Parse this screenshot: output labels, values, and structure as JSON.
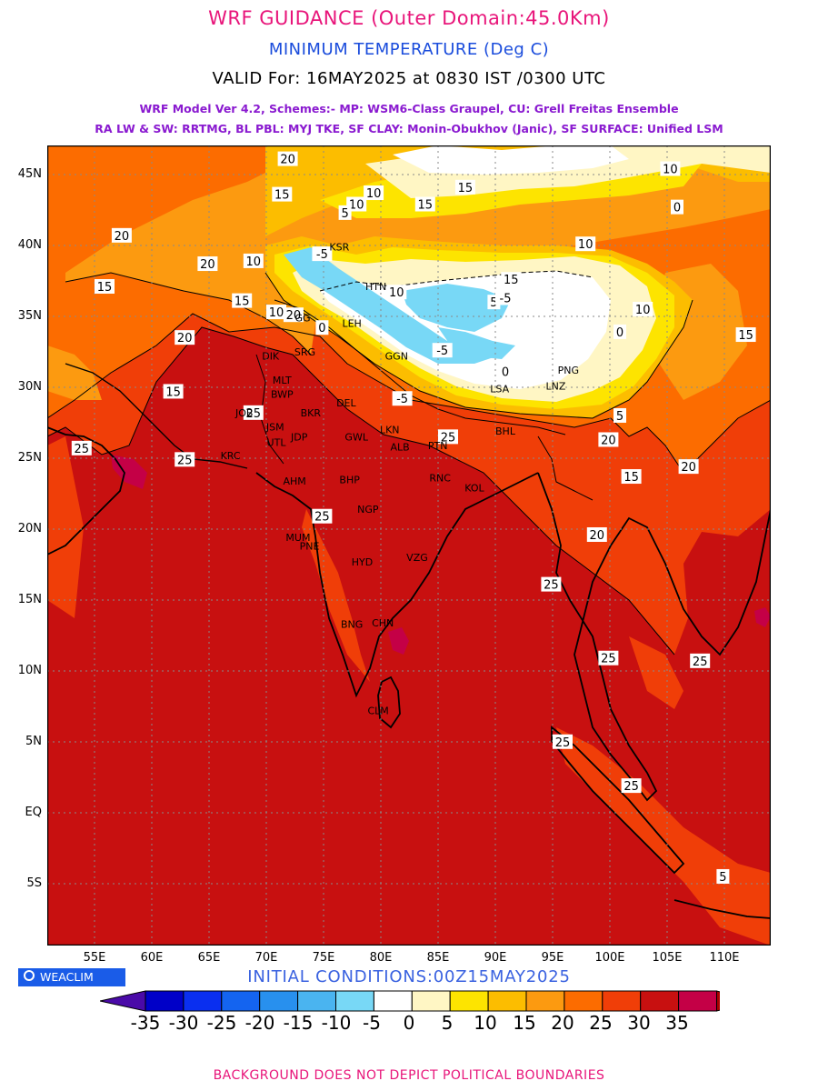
{
  "header": {
    "title": "WRF GUIDANCE (Outer Domain:45.0Km)",
    "subtitle": "MINIMUM TEMPERATURE (Deg C)",
    "valid": "VALID For: 16MAY2025 at 0830 IST /0300 UTC",
    "model_line1": "WRF Model Ver 4.2, Schemes:- MP: WSM6-Class Graupel, CU: Grell Freitas Ensemble",
    "model_line2": "RA LW & SW: RRTMG, BL PBL: MYJ TKE, SF CLAY: Monin-Obukhov (Janic), SF SURFACE: Unified LSM"
  },
  "map": {
    "lat_labels": [
      "45N",
      "40N",
      "35N",
      "30N",
      "25N",
      "20N",
      "15N",
      "10N",
      "5N",
      "EQ",
      "5S"
    ],
    "lon_labels": [
      "55E",
      "60E",
      "65E",
      "70E",
      "75E",
      "80E",
      "85E",
      "90E",
      "95E",
      "100E",
      "105E",
      "110E"
    ],
    "contour_labels": [
      {
        "t": "20"
      },
      {
        "t": "15"
      },
      {
        "t": "10"
      },
      {
        "t": "15"
      },
      {
        "t": "15"
      },
      {
        "t": "10"
      },
      {
        "t": "5"
      },
      {
        "t": "20"
      },
      {
        "t": "10"
      },
      {
        "t": "20"
      },
      {
        "t": "15"
      },
      {
        "t": "15"
      },
      {
        "t": "10"
      },
      {
        "t": "-5"
      },
      {
        "t": "15"
      },
      {
        "t": "10"
      },
      {
        "t": "5"
      },
      {
        "t": "10"
      },
      {
        "t": "20"
      },
      {
        "t": "20"
      },
      {
        "t": "-5"
      },
      {
        "t": "0"
      },
      {
        "t": "-5"
      },
      {
        "t": "0"
      },
      {
        "t": "10"
      },
      {
        "t": "15"
      },
      {
        "t": "15"
      },
      {
        "t": "25"
      },
      {
        "t": "-5"
      },
      {
        "t": "0"
      },
      {
        "t": "5"
      },
      {
        "t": "25"
      },
      {
        "t": "25"
      },
      {
        "t": "20"
      },
      {
        "t": "20"
      },
      {
        "t": "15"
      },
      {
        "t": "25"
      },
      {
        "t": "20"
      },
      {
        "t": "25"
      },
      {
        "t": "25"
      },
      {
        "t": "25"
      },
      {
        "t": "25"
      },
      {
        "t": "25"
      },
      {
        "t": "25"
      },
      {
        "t": "5"
      },
      {
        "t": "10"
      },
      {
        "t": "0"
      }
    ],
    "cities": [
      "KSR",
      "HTN",
      "GGN",
      "LSA",
      "PNG",
      "DIK",
      "SRG",
      "MLT",
      "BWP",
      "JOB",
      "JSM",
      "UTL",
      "JDP",
      "BKR",
      "LKN",
      "ALB",
      "PTN",
      "DEL",
      "GWL",
      "KRC",
      "AHM",
      "BHP",
      "RNC",
      "KOL",
      "NGP",
      "MUM",
      "PNE",
      "HYD",
      "VZG",
      "CHN",
      "BNG",
      "CLM",
      "GG",
      "LEH",
      "LNZ",
      "BHL"
    ]
  },
  "colorbar": {
    "colors": [
      "#4a0aa8",
      "#0000c8",
      "#0a2ff0",
      "#1464f0",
      "#2890ee",
      "#4ab4f0",
      "#78d8f6",
      "#ffffff",
      "#fff6c4",
      "#fde400",
      "#fcbd00",
      "#fc9a10",
      "#fc6c00",
      "#f03e08",
      "#c81010",
      "#c40046",
      "#aa0000"
    ],
    "labels": [
      "-35",
      "-30",
      "-25",
      "-20",
      "-15",
      "-10",
      "-5",
      "0",
      "5",
      "10",
      "15",
      "20",
      "25",
      "30",
      "35"
    ]
  },
  "logo_text": "WEACLIM",
  "initial_conditions": "INITIAL CONDITIONS:00Z15MAY2025",
  "footer": "BACKGROUND DOES NOT DEPICT POLITICAL BOUNDARIES"
}
